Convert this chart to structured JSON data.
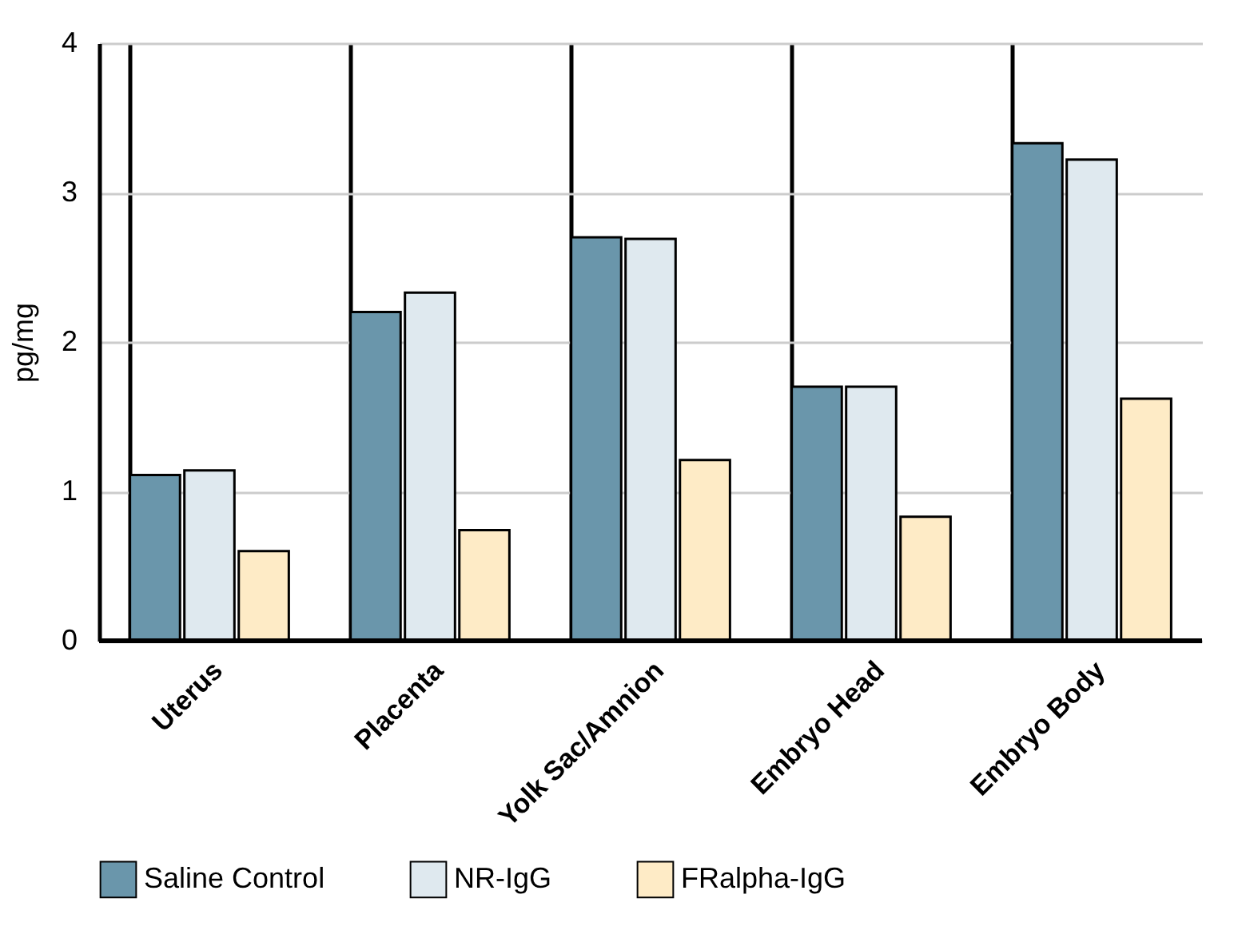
{
  "chart_data": {
    "type": "bar",
    "ylabel": "pg/mg",
    "categories": [
      "Uterus",
      "Placenta",
      "Yolk Sac/Amnion",
      "Embryo Head",
      "Embryo Body"
    ],
    "series": [
      {
        "name": "Saline Control",
        "color": "#6a96ab",
        "values": [
          1.11,
          2.2,
          2.7,
          1.7,
          3.33
        ]
      },
      {
        "name": "NR-IgG",
        "color": "#dfe9ef",
        "values": [
          1.14,
          2.33,
          2.69,
          1.7,
          3.22
        ]
      },
      {
        "name": "FRalpha-IgG",
        "color": "#feebc6",
        "values": [
          0.6,
          0.74,
          1.21,
          0.83,
          1.62
        ]
      }
    ],
    "ylim": [
      0,
      4
    ],
    "yticks": [
      0,
      1,
      2,
      3,
      4
    ],
    "grid": "y",
    "legend": "bottom"
  }
}
